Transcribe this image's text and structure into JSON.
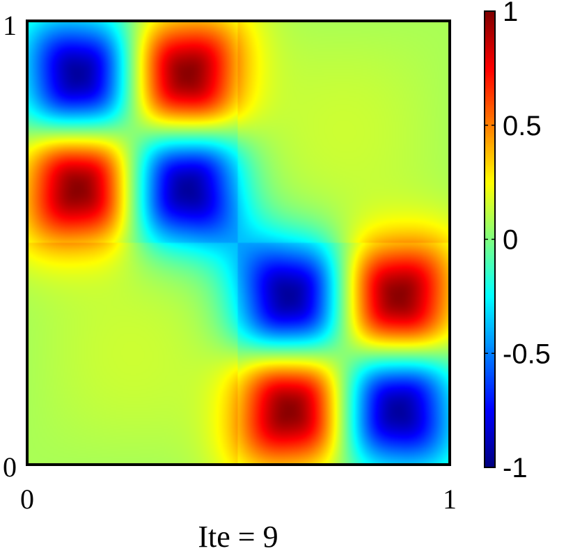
{
  "chart_data": {
    "type": "heatmap",
    "title": "",
    "xlabel": "Ite = 9",
    "ylabel": "",
    "xlim": [
      0,
      1
    ],
    "ylim": [
      0,
      1
    ],
    "x_ticks": [
      "0",
      "1"
    ],
    "y_ticks": [
      "0",
      "1"
    ],
    "colorbar": {
      "range": [
        -1,
        1
      ],
      "ticks": [
        "1",
        "0.5",
        "0",
        "-0.5",
        "-1"
      ],
      "tick_values": [
        1,
        0.5,
        0,
        -0.5,
        -1
      ],
      "colormap": "jet"
    },
    "blobs": [
      {
        "x": 0.125,
        "y": 0.875,
        "value": -1
      },
      {
        "x": 0.375,
        "y": 0.875,
        "value": 1
      },
      {
        "x": 0.125,
        "y": 0.625,
        "value": 1
      },
      {
        "x": 0.375,
        "y": 0.625,
        "value": -1
      },
      {
        "x": 0.625,
        "y": 0.375,
        "value": -1
      },
      {
        "x": 0.875,
        "y": 0.375,
        "value": 1
      },
      {
        "x": 0.625,
        "y": 0.125,
        "value": 1
      },
      {
        "x": 0.875,
        "y": 0.125,
        "value": -1
      }
    ],
    "background_level": 0.15,
    "grid": false,
    "legend": "none"
  },
  "colors": {
    "frame": "#000000",
    "background": "#ffffff"
  }
}
